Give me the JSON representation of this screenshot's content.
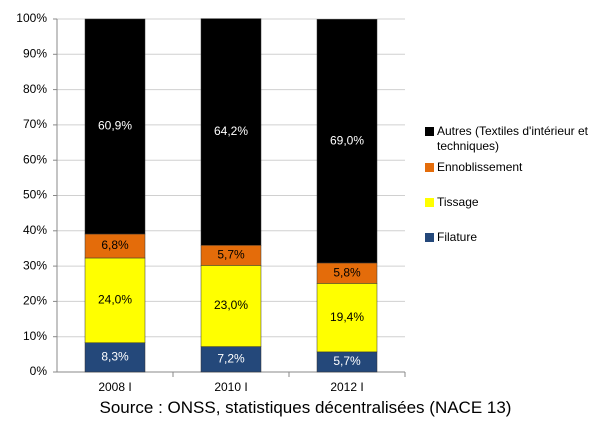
{
  "chart_data": {
    "type": "stacked_bar",
    "categories": [
      "2008 I",
      "2010 I",
      "2012 I"
    ],
    "series": [
      {
        "name": "Filature",
        "color": "#24487a",
        "values": [
          8.3,
          7.2,
          5.7
        ],
        "value_labels": [
          "8,3%",
          "7,2%",
          "5,7%"
        ]
      },
      {
        "name": "Tissage",
        "color": "#ffff00",
        "values": [
          24.0,
          23.0,
          19.4
        ],
        "value_labels": [
          "24,0%",
          "23,0%",
          "19,4%"
        ]
      },
      {
        "name": "Ennoblissement",
        "color": "#e46c0a",
        "values": [
          6.8,
          5.7,
          5.8
        ],
        "value_labels": [
          "6,8%",
          "5,7%",
          "5,8%"
        ]
      },
      {
        "name": "Autres (Textiles d'intérieur et techniques)",
        "color": "#000000",
        "values": [
          60.9,
          64.2,
          69.0
        ],
        "value_labels": [
          "60,9%",
          "64,2%",
          "69,0%"
        ]
      }
    ],
    "ylim": [
      0,
      100
    ],
    "yticks": [
      {
        "value": 0,
        "label": "0%"
      },
      {
        "value": 10,
        "label": "10%"
      },
      {
        "value": 20,
        "label": "20%"
      },
      {
        "value": 30,
        "label": "30%"
      },
      {
        "value": 40,
        "label": "40%"
      },
      {
        "value": 50,
        "label": "50%"
      },
      {
        "value": 60,
        "label": "60%"
      },
      {
        "value": 70,
        "label": "70%"
      },
      {
        "value": 80,
        "label": "80%"
      },
      {
        "value": 90,
        "label": "90%"
      },
      {
        "value": 100,
        "label": "100%"
      }
    ],
    "grid": true,
    "legend": "right",
    "source": "Source : ONSS, statistiques décentralisées (NACE 13)"
  }
}
